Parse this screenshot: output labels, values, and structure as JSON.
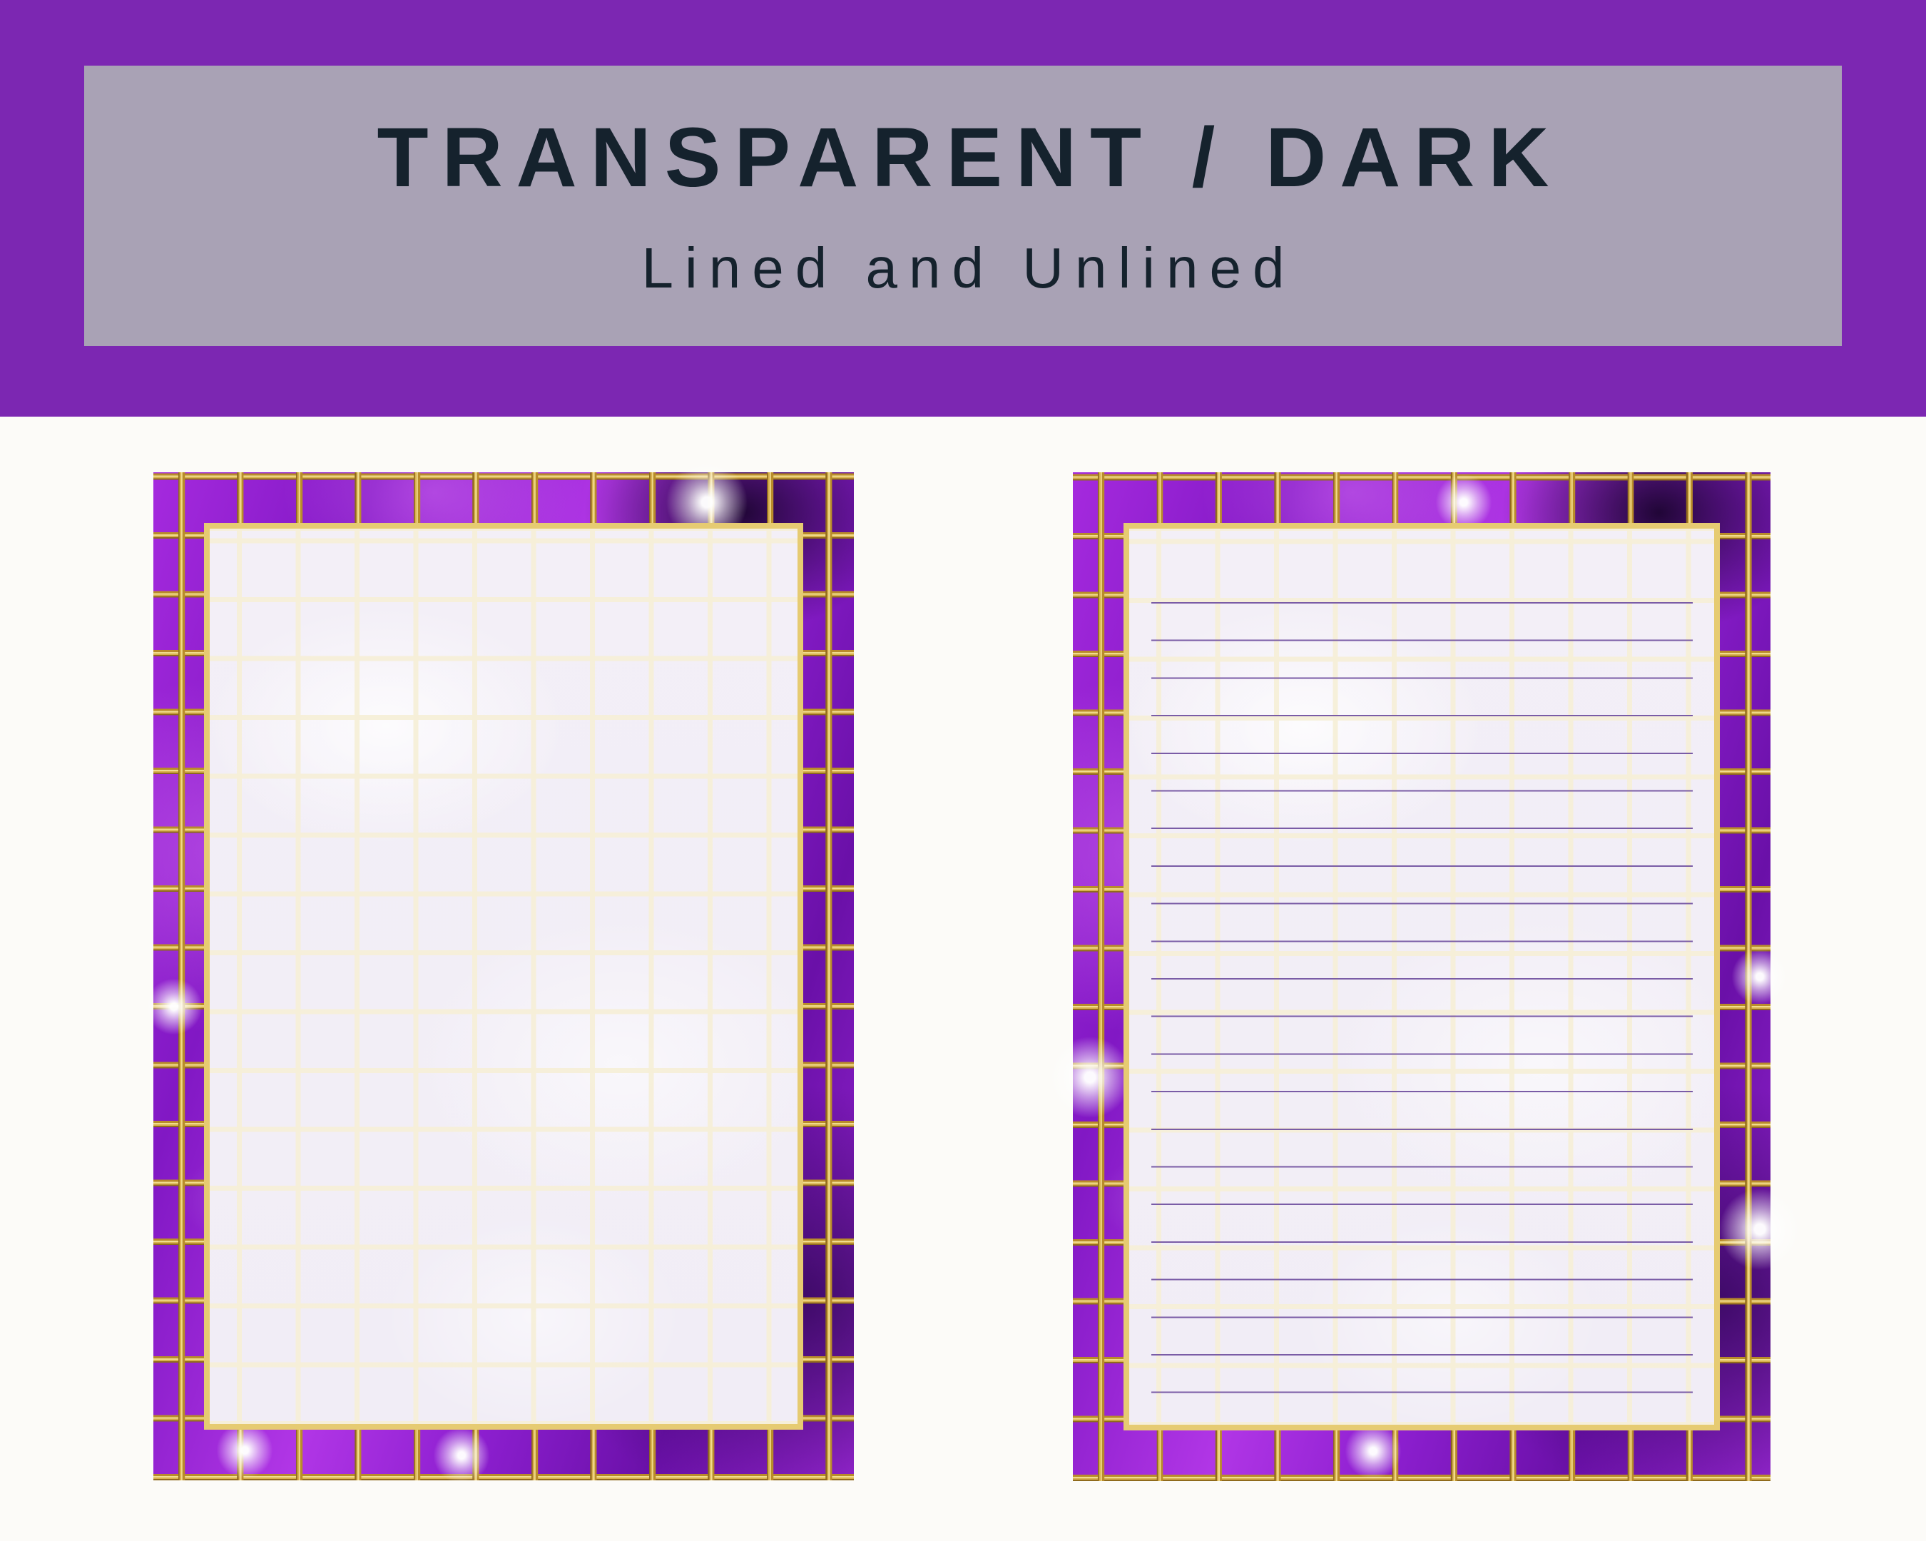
{
  "header": {
    "title": "TRANSPARENT / DARK",
    "subtitle": "Lined and Unlined"
  },
  "theme": {
    "band_purple": "#7c27b2",
    "banner_gray": "#a9a2b5",
    "heading_ink": "#15222d",
    "body_bg": "#fcfbf8",
    "gold": "#c79b35",
    "gold_light": "#ecd584",
    "frame_gold": "#e6cb72",
    "paper": "#f2eef6",
    "paper_grid": "#f6efd8",
    "rule_line": "#7a5ca6",
    "marble_purple": "#a82ce0",
    "marble_deep": "#6d11ad",
    "marble_dark": "#2a0747"
  },
  "pages": [
    {
      "variant": "unlined",
      "name": "unlined-page"
    },
    {
      "variant": "lined",
      "name": "lined-page"
    }
  ]
}
